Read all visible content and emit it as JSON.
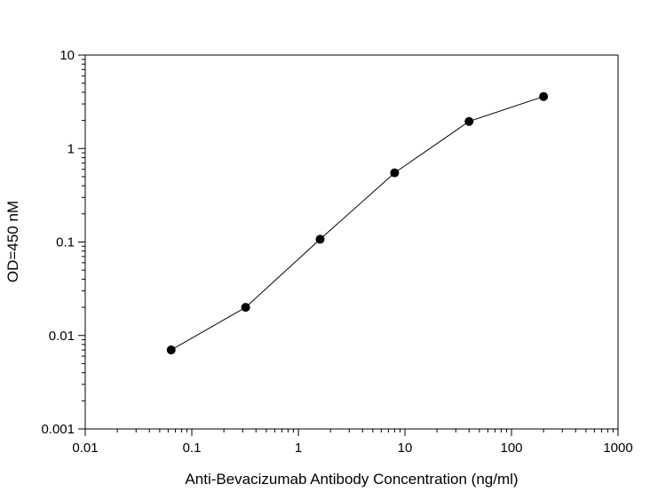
{
  "chart_data": {
    "type": "line",
    "title": "",
    "xlabel": "Anti-Bevacizumab Antibody Concentration (ng/ml)",
    "ylabel": "OD=450 nM",
    "x_scale": "log",
    "y_scale": "log",
    "xlim": [
      0.01,
      1000
    ],
    "ylim": [
      0.001,
      10
    ],
    "x_ticks": [
      "0.01",
      "0.1",
      "1",
      "10",
      "100",
      "1000"
    ],
    "y_ticks": [
      "0.001",
      "0.01",
      "0.1",
      "1",
      "10"
    ],
    "grid": false,
    "legend": "none",
    "series": [
      {
        "color": "#000000",
        "marker": "circle",
        "x": [
          0.064,
          0.32,
          1.6,
          8,
          40,
          200
        ],
        "y": [
          0.007,
          0.02,
          0.107,
          0.55,
          1.95,
          3.6
        ]
      }
    ]
  }
}
